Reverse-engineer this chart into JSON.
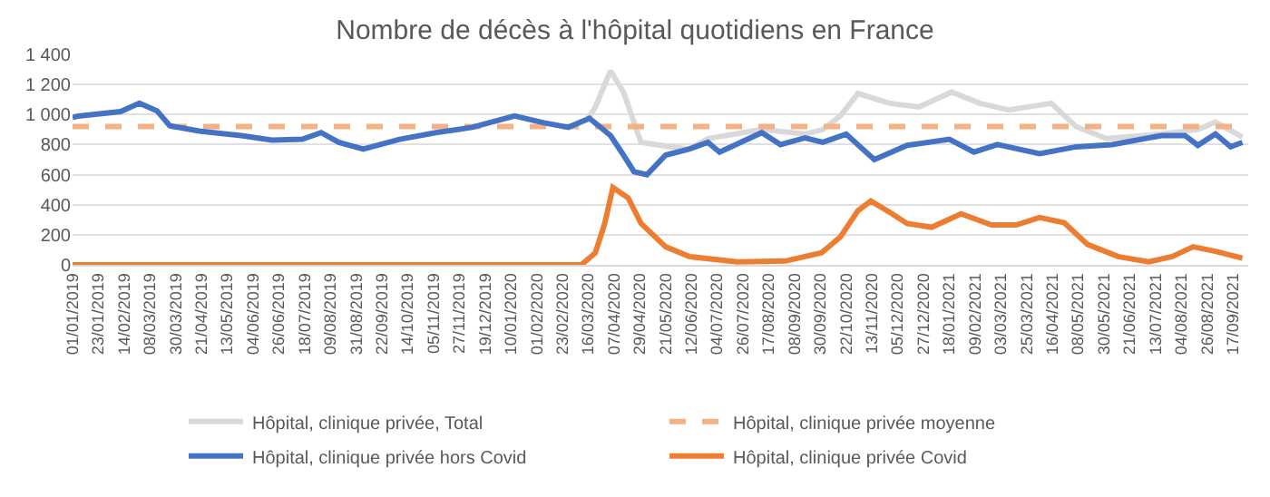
{
  "chart_data": {
    "type": "line",
    "title": "Nombre de décès à l'hôpital quotidiens en France",
    "xlim": [
      "2019-01-01",
      "2021-09-30"
    ],
    "xticks": [
      {
        "value": "2019-01-01",
        "label": "01/01/2019"
      },
      {
        "value": "2019-01-23",
        "label": "23/01/2019"
      },
      {
        "value": "2019-02-14",
        "label": "14/02/2019"
      },
      {
        "value": "2019-03-08",
        "label": "08/03/2019"
      },
      {
        "value": "2019-03-30",
        "label": "30/03/2019"
      },
      {
        "value": "2019-04-21",
        "label": "21/04/2019"
      },
      {
        "value": "2019-05-13",
        "label": "13/05/2019"
      },
      {
        "value": "2019-06-04",
        "label": "04/06/2019"
      },
      {
        "value": "2019-06-26",
        "label": "26/06/2019"
      },
      {
        "value": "2019-07-18",
        "label": "18/07/2019"
      },
      {
        "value": "2019-08-09",
        "label": "09/08/2019"
      },
      {
        "value": "2019-08-31",
        "label": "31/08/2019"
      },
      {
        "value": "2019-09-22",
        "label": "22/09/2019"
      },
      {
        "value": "2019-10-14",
        "label": "14/10/2019"
      },
      {
        "value": "2019-11-05",
        "label": "05/11/2019"
      },
      {
        "value": "2019-11-27",
        "label": "27/11/2019"
      },
      {
        "value": "2019-12-19",
        "label": "19/12/2019"
      },
      {
        "value": "2020-01-10",
        "label": "10/01/2020"
      },
      {
        "value": "2020-02-01",
        "label": "01/02/2020"
      },
      {
        "value": "2020-02-23",
        "label": "23/02/2020"
      },
      {
        "value": "2020-03-16",
        "label": "16/03/2020"
      },
      {
        "value": "2020-04-07",
        "label": "07/04/2020"
      },
      {
        "value": "2020-04-29",
        "label": "29/04/2020"
      },
      {
        "value": "2020-05-21",
        "label": "21/05/2020"
      },
      {
        "value": "2020-06-12",
        "label": "12/06/2020"
      },
      {
        "value": "2020-07-04",
        "label": "04/07/2020"
      },
      {
        "value": "2020-07-26",
        "label": "26/07/2020"
      },
      {
        "value": "2020-08-17",
        "label": "17/08/2020"
      },
      {
        "value": "2020-09-08",
        "label": "08/09/2020"
      },
      {
        "value": "2020-09-30",
        "label": "30/09/2020"
      },
      {
        "value": "2020-10-22",
        "label": "22/10/2020"
      },
      {
        "value": "2020-11-13",
        "label": "13/11/2020"
      },
      {
        "value": "2020-12-05",
        "label": "05/12/2020"
      },
      {
        "value": "2020-12-27",
        "label": "27/12/2020"
      },
      {
        "value": "2021-01-18",
        "label": "18/01/2021"
      },
      {
        "value": "2021-02-09",
        "label": "09/02/2021"
      },
      {
        "value": "2021-03-03",
        "label": "03/03/2021"
      },
      {
        "value": "2021-03-25",
        "label": "25/03/2021"
      },
      {
        "value": "2021-04-16",
        "label": "16/04/2021"
      },
      {
        "value": "2021-05-08",
        "label": "08/05/2021"
      },
      {
        "value": "2021-05-30",
        "label": "30/05/2021"
      },
      {
        "value": "2021-06-21",
        "label": "21/06/2021"
      },
      {
        "value": "2021-07-13",
        "label": "13/07/2021"
      },
      {
        "value": "2021-08-04",
        "label": "04/08/2021"
      },
      {
        "value": "2021-08-26",
        "label": "26/08/2021"
      },
      {
        "value": "2021-09-17",
        "label": "17/09/2021"
      }
    ],
    "ylim": [
      0,
      1400
    ],
    "yticks": [
      0,
      200,
      400,
      600,
      800,
      {
        "value": 1000,
        "label": "1 000"
      },
      {
        "value": 1200,
        "label": "1 200"
      },
      {
        "value": 1400,
        "label": "1 400"
      }
    ],
    "grid": "y",
    "legend": "bottom",
    "marker": "none",
    "series": [
      {
        "name": "Hôpital, clinique privée, Total",
        "color": "#d9d9d9",
        "x": [
          "2020-03-16",
          "2020-03-22",
          "2020-03-30",
          "2020-04-04",
          "2020-04-15",
          "2020-04-30",
          "2020-05-21",
          "2020-06-10",
          "2020-06-26",
          "2020-08-11",
          "2020-09-17",
          "2020-10-02",
          "2020-10-17",
          "2020-11-01",
          "2020-11-28",
          "2020-12-23",
          "2021-01-20",
          "2021-02-13",
          "2021-03-10",
          "2021-04-15",
          "2021-05-06",
          "2021-06-01",
          "2021-07-18",
          "2021-08-18",
          "2021-09-02",
          "2021-09-25"
        ],
        "values": [
          975,
          1050,
          1200,
          1290,
          1150,
          815,
          790,
          770,
          840,
          900,
          870,
          900,
          990,
          1140,
          1075,
          1050,
          1150,
          1075,
          1030,
          1075,
          920,
          840,
          870,
          900,
          950,
          850
        ]
      },
      {
        "name": "Hôpital, clinique privée moyenne",
        "color": "#f4b183",
        "line_style": "dashed",
        "x": [
          "2019-01-01",
          "2021-09-30"
        ],
        "values": [
          920,
          920
        ]
      },
      {
        "name": "Hôpital, clinique privée hors Covid",
        "color": "#4472c4",
        "x": [
          "2019-01-01",
          "2019-01-06",
          "2019-02-11",
          "2019-02-27",
          "2019-03-14",
          "2019-03-25",
          "2019-04-19",
          "2019-05-25",
          "2019-06-20",
          "2019-07-16",
          "2019-08-01",
          "2019-08-16",
          "2019-09-06",
          "2019-10-07",
          "2019-11-07",
          "2019-12-08",
          "2020-01-13",
          "2020-02-07",
          "2020-02-28",
          "2020-03-17",
          "2020-04-04",
          "2020-04-15",
          "2020-04-24",
          "2020-05-05",
          "2020-05-21",
          "2020-06-10",
          "2020-06-26",
          "2020-07-06",
          "2020-08-11",
          "2020-08-27",
          "2020-09-17",
          "2020-10-02",
          "2020-10-22",
          "2020-11-15",
          "2020-12-13",
          "2021-01-18",
          "2021-02-08",
          "2021-02-28",
          "2021-04-05",
          "2021-05-06",
          "2021-06-06",
          "2021-07-18",
          "2021-08-07",
          "2021-08-18",
          "2021-09-02",
          "2021-09-15",
          "2021-09-25"
        ],
        "values": [
          980,
          990,
          1020,
          1075,
          1025,
          925,
          890,
          860,
          830,
          835,
          880,
          815,
          770,
          835,
          880,
          915,
          990,
          945,
          915,
          975,
          860,
          730,
          620,
          600,
          730,
          770,
          815,
          750,
          880,
          800,
          845,
          815,
          870,
          700,
          795,
          835,
          750,
          800,
          740,
          785,
          800,
          860,
          860,
          795,
          870,
          785,
          815
        ]
      },
      {
        "name": "Hôpital, clinique privée Covid",
        "color": "#ed7d31",
        "x": [
          "2019-01-01",
          "2020-03-10",
          "2020-03-22",
          "2020-03-30",
          "2020-04-06",
          "2020-04-19",
          "2020-04-30",
          "2020-05-21",
          "2020-06-10",
          "2020-07-21",
          "2020-08-31",
          "2020-10-01",
          "2020-10-17",
          "2020-11-01",
          "2020-11-12",
          "2020-11-28",
          "2020-12-13",
          "2021-01-03",
          "2021-01-28",
          "2021-02-23",
          "2021-03-16",
          "2021-04-05",
          "2021-04-26",
          "2021-05-16",
          "2021-06-11",
          "2021-07-07",
          "2021-07-27",
          "2021-08-14",
          "2021-09-02",
          "2021-09-25"
        ],
        "values": [
          0,
          0,
          80,
          275,
          515,
          445,
          275,
          120,
          55,
          20,
          25,
          80,
          185,
          360,
          425,
          350,
          275,
          250,
          340,
          265,
          265,
          315,
          280,
          135,
          55,
          20,
          55,
          120,
          90,
          45
        ]
      }
    ]
  }
}
